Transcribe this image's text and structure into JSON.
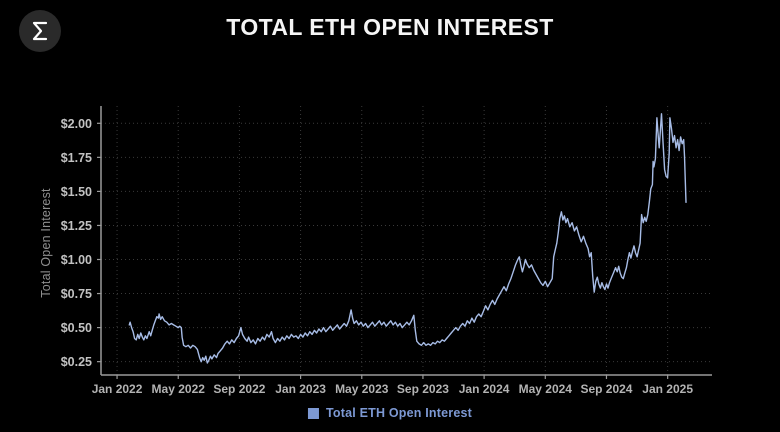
{
  "header": {
    "title": "TOTAL ETH OPEN INTEREST",
    "logo_glyph": "sigma"
  },
  "colors": {
    "background": "#000000",
    "title": "#f5f5f5",
    "axis": "#9a9a9a",
    "tick_label": "#b3b3b3",
    "y_tick_label": "#c2c2c2",
    "y_axis_title": "#8f8f8f",
    "grid": "#3a3a3a",
    "line": "#a7bce6",
    "legend": "#7d99d4",
    "logo_bg": "#2a2a2a",
    "logo_glyph": "#ffffff"
  },
  "chart_data": {
    "type": "line",
    "title": "TOTAL ETH OPEN INTEREST",
    "ylabel": "Total Open Interest",
    "xlabel": "",
    "series_name": "Total ETH Open Interest",
    "line_color": "#a7bce6",
    "grid": true,
    "legend_position": "bottom",
    "x_unit": "months since Jan 2022",
    "y_unit": "USD",
    "x_domain": [
      -1.05,
      38.9
    ],
    "y_domain": [
      0.152,
      2.127
    ],
    "x_ticks": [
      {
        "m": 0,
        "label": "Jan 2022"
      },
      {
        "m": 4,
        "label": "May 2022"
      },
      {
        "m": 8,
        "label": "Sep 2022"
      },
      {
        "m": 12,
        "label": "Jan 2023"
      },
      {
        "m": 16,
        "label": "May 2023"
      },
      {
        "m": 20,
        "label": "Sep 2023"
      },
      {
        "m": 24,
        "label": "Jan 2024"
      },
      {
        "m": 28,
        "label": "May 2024"
      },
      {
        "m": 32,
        "label": "Sep 2024"
      },
      {
        "m": 36,
        "label": "Jan 2025"
      }
    ],
    "y_ticks": [
      {
        "v": 0.25,
        "label": "$0.25"
      },
      {
        "v": 0.5,
        "label": "$0.50"
      },
      {
        "v": 0.75,
        "label": "$0.75"
      },
      {
        "v": 1.0,
        "label": "$1.00"
      },
      {
        "v": 1.25,
        "label": "$1.25"
      },
      {
        "v": 1.5,
        "label": "$1.50"
      },
      {
        "v": 1.75,
        "label": "$1.75"
      },
      {
        "v": 2.0,
        "label": "$2.00"
      }
    ],
    "points": [
      [
        0.8,
        0.52
      ],
      [
        0.85,
        0.54
      ],
      [
        0.95,
        0.5
      ],
      [
        1.05,
        0.47
      ],
      [
        1.15,
        0.42
      ],
      [
        1.25,
        0.41
      ],
      [
        1.35,
        0.45
      ],
      [
        1.45,
        0.42
      ],
      [
        1.55,
        0.46
      ],
      [
        1.65,
        0.43
      ],
      [
        1.75,
        0.41
      ],
      [
        1.85,
        0.44
      ],
      [
        1.95,
        0.42
      ],
      [
        2.1,
        0.47
      ],
      [
        2.2,
        0.44
      ],
      [
        2.3,
        0.48
      ],
      [
        2.4,
        0.52
      ],
      [
        2.5,
        0.55
      ],
      [
        2.6,
        0.58
      ],
      [
        2.7,
        0.57
      ],
      [
        2.75,
        0.6
      ],
      [
        2.85,
        0.56
      ],
      [
        2.95,
        0.58
      ],
      [
        3.1,
        0.55
      ],
      [
        3.25,
        0.54
      ],
      [
        3.4,
        0.52
      ],
      [
        3.55,
        0.53
      ],
      [
        3.7,
        0.52
      ],
      [
        3.85,
        0.51
      ],
      [
        4.0,
        0.5
      ],
      [
        4.1,
        0.51
      ],
      [
        4.2,
        0.5
      ],
      [
        4.25,
        0.43
      ],
      [
        4.35,
        0.37
      ],
      [
        4.5,
        0.36
      ],
      [
        4.65,
        0.37
      ],
      [
        4.8,
        0.35
      ],
      [
        4.95,
        0.37
      ],
      [
        5.1,
        0.36
      ],
      [
        5.25,
        0.34
      ],
      [
        5.4,
        0.28
      ],
      [
        5.5,
        0.25
      ],
      [
        5.6,
        0.28
      ],
      [
        5.7,
        0.26
      ],
      [
        5.8,
        0.29
      ],
      [
        5.9,
        0.24
      ],
      [
        6.0,
        0.26
      ],
      [
        6.1,
        0.29
      ],
      [
        6.2,
        0.27
      ],
      [
        6.35,
        0.3
      ],
      [
        6.5,
        0.28
      ],
      [
        6.6,
        0.31
      ],
      [
        6.75,
        0.33
      ],
      [
        6.9,
        0.35
      ],
      [
        7.05,
        0.38
      ],
      [
        7.2,
        0.4
      ],
      [
        7.35,
        0.38
      ],
      [
        7.5,
        0.41
      ],
      [
        7.65,
        0.39
      ],
      [
        7.8,
        0.42
      ],
      [
        7.95,
        0.44
      ],
      [
        8.1,
        0.5
      ],
      [
        8.2,
        0.45
      ],
      [
        8.35,
        0.42
      ],
      [
        8.5,
        0.4
      ],
      [
        8.6,
        0.43
      ],
      [
        8.75,
        0.39
      ],
      [
        8.9,
        0.41
      ],
      [
        9.05,
        0.38
      ],
      [
        9.2,
        0.42
      ],
      [
        9.35,
        0.4
      ],
      [
        9.5,
        0.43
      ],
      [
        9.65,
        0.41
      ],
      [
        9.8,
        0.45
      ],
      [
        9.95,
        0.43
      ],
      [
        10.1,
        0.47
      ],
      [
        10.2,
        0.42
      ],
      [
        10.35,
        0.39
      ],
      [
        10.5,
        0.42
      ],
      [
        10.65,
        0.4
      ],
      [
        10.8,
        0.43
      ],
      [
        10.95,
        0.41
      ],
      [
        11.1,
        0.44
      ],
      [
        11.25,
        0.42
      ],
      [
        11.4,
        0.45
      ],
      [
        11.55,
        0.43
      ],
      [
        11.7,
        0.44
      ],
      [
        11.85,
        0.42
      ],
      [
        12.0,
        0.45
      ],
      [
        12.15,
        0.43
      ],
      [
        12.3,
        0.46
      ],
      [
        12.45,
        0.44
      ],
      [
        12.6,
        0.47
      ],
      [
        12.75,
        0.45
      ],
      [
        12.9,
        0.48
      ],
      [
        13.05,
        0.46
      ],
      [
        13.2,
        0.49
      ],
      [
        13.35,
        0.47
      ],
      [
        13.5,
        0.5
      ],
      [
        13.65,
        0.47
      ],
      [
        13.8,
        0.49
      ],
      [
        13.95,
        0.51
      ],
      [
        14.1,
        0.48
      ],
      [
        14.25,
        0.5
      ],
      [
        14.4,
        0.52
      ],
      [
        14.55,
        0.49
      ],
      [
        14.7,
        0.51
      ],
      [
        14.85,
        0.53
      ],
      [
        15.0,
        0.51
      ],
      [
        15.15,
        0.55
      ],
      [
        15.3,
        0.63
      ],
      [
        15.4,
        0.57
      ],
      [
        15.5,
        0.53
      ],
      [
        15.65,
        0.55
      ],
      [
        15.8,
        0.52
      ],
      [
        15.95,
        0.54
      ],
      [
        16.1,
        0.51
      ],
      [
        16.25,
        0.53
      ],
      [
        16.4,
        0.5
      ],
      [
        16.55,
        0.52
      ],
      [
        16.7,
        0.54
      ],
      [
        16.85,
        0.51
      ],
      [
        17.0,
        0.53
      ],
      [
        17.15,
        0.55
      ],
      [
        17.3,
        0.52
      ],
      [
        17.45,
        0.54
      ],
      [
        17.6,
        0.51
      ],
      [
        17.75,
        0.53
      ],
      [
        17.9,
        0.55
      ],
      [
        18.05,
        0.52
      ],
      [
        18.2,
        0.54
      ],
      [
        18.35,
        0.51
      ],
      [
        18.5,
        0.53
      ],
      [
        18.65,
        0.5
      ],
      [
        18.8,
        0.52
      ],
      [
        18.95,
        0.54
      ],
      [
        19.1,
        0.52
      ],
      [
        19.25,
        0.55
      ],
      [
        19.4,
        0.59
      ],
      [
        19.5,
        0.48
      ],
      [
        19.6,
        0.4
      ],
      [
        19.75,
        0.38
      ],
      [
        19.9,
        0.37
      ],
      [
        20.05,
        0.39
      ],
      [
        20.2,
        0.37
      ],
      [
        20.35,
        0.38
      ],
      [
        20.5,
        0.37
      ],
      [
        20.65,
        0.39
      ],
      [
        20.8,
        0.38
      ],
      [
        20.95,
        0.4
      ],
      [
        21.1,
        0.39
      ],
      [
        21.25,
        0.41
      ],
      [
        21.4,
        0.4
      ],
      [
        21.55,
        0.42
      ],
      [
        21.7,
        0.44
      ],
      [
        21.85,
        0.46
      ],
      [
        22.0,
        0.48
      ],
      [
        22.15,
        0.5
      ],
      [
        22.3,
        0.48
      ],
      [
        22.45,
        0.51
      ],
      [
        22.6,
        0.53
      ],
      [
        22.75,
        0.51
      ],
      [
        22.9,
        0.55
      ],
      [
        23.05,
        0.53
      ],
      [
        23.2,
        0.57
      ],
      [
        23.35,
        0.54
      ],
      [
        23.5,
        0.58
      ],
      [
        23.65,
        0.6
      ],
      [
        23.8,
        0.58
      ],
      [
        23.95,
        0.62
      ],
      [
        24.1,
        0.66
      ],
      [
        24.25,
        0.63
      ],
      [
        24.4,
        0.67
      ],
      [
        24.55,
        0.7
      ],
      [
        24.7,
        0.67
      ],
      [
        24.85,
        0.71
      ],
      [
        25.0,
        0.74
      ],
      [
        25.15,
        0.77
      ],
      [
        25.3,
        0.8
      ],
      [
        25.45,
        0.77
      ],
      [
        25.6,
        0.82
      ],
      [
        25.75,
        0.86
      ],
      [
        25.9,
        0.91
      ],
      [
        26.05,
        0.96
      ],
      [
        26.2,
        1.0
      ],
      [
        26.3,
        1.02
      ],
      [
        26.4,
        0.96
      ],
      [
        26.5,
        0.91
      ],
      [
        26.6,
        0.95
      ],
      [
        26.7,
        1.0
      ],
      [
        26.8,
        0.97
      ],
      [
        26.95,
        0.94
      ],
      [
        27.1,
        0.96
      ],
      [
        27.25,
        0.92
      ],
      [
        27.4,
        0.89
      ],
      [
        27.55,
        0.86
      ],
      [
        27.7,
        0.83
      ],
      [
        27.85,
        0.81
      ],
      [
        28.0,
        0.84
      ],
      [
        28.15,
        0.8
      ],
      [
        28.3,
        0.83
      ],
      [
        28.45,
        0.86
      ],
      [
        28.55,
        1.02
      ],
      [
        28.65,
        1.07
      ],
      [
        28.75,
        1.12
      ],
      [
        28.85,
        1.2
      ],
      [
        28.95,
        1.3
      ],
      [
        29.05,
        1.35
      ],
      [
        29.15,
        1.29
      ],
      [
        29.25,
        1.32
      ],
      [
        29.35,
        1.27
      ],
      [
        29.45,
        1.3
      ],
      [
        29.6,
        1.24
      ],
      [
        29.75,
        1.27
      ],
      [
        29.9,
        1.21
      ],
      [
        30.05,
        1.24
      ],
      [
        30.2,
        1.18
      ],
      [
        30.35,
        1.13
      ],
      [
        30.5,
        1.17
      ],
      [
        30.65,
        1.12
      ],
      [
        30.8,
        1.08
      ],
      [
        30.9,
        1.02
      ],
      [
        31.0,
        1.05
      ],
      [
        31.1,
        0.88
      ],
      [
        31.2,
        0.76
      ],
      [
        31.3,
        0.84
      ],
      [
        31.4,
        0.87
      ],
      [
        31.5,
        0.82
      ],
      [
        31.6,
        0.79
      ],
      [
        31.7,
        0.83
      ],
      [
        31.8,
        0.8
      ],
      [
        31.9,
        0.78
      ],
      [
        32.0,
        0.82
      ],
      [
        32.1,
        0.79
      ],
      [
        32.2,
        0.83
      ],
      [
        32.3,
        0.86
      ],
      [
        32.45,
        0.9
      ],
      [
        32.6,
        0.94
      ],
      [
        32.7,
        0.91
      ],
      [
        32.8,
        0.95
      ],
      [
        32.9,
        0.9
      ],
      [
        33.0,
        0.87
      ],
      [
        33.1,
        0.86
      ],
      [
        33.2,
        0.9
      ],
      [
        33.3,
        0.94
      ],
      [
        33.4,
        1.0
      ],
      [
        33.5,
        1.05
      ],
      [
        33.6,
        1.01
      ],
      [
        33.7,
        1.06
      ],
      [
        33.8,
        1.1
      ],
      [
        33.9,
        1.05
      ],
      [
        34.0,
        1.02
      ],
      [
        34.1,
        1.07
      ],
      [
        34.2,
        1.12
      ],
      [
        34.3,
        1.33
      ],
      [
        34.4,
        1.27
      ],
      [
        34.5,
        1.31
      ],
      [
        34.6,
        1.28
      ],
      [
        34.7,
        1.33
      ],
      [
        34.8,
        1.42
      ],
      [
        34.9,
        1.52
      ],
      [
        35.0,
        1.55
      ],
      [
        35.05,
        1.72
      ],
      [
        35.1,
        1.68
      ],
      [
        35.2,
        1.74
      ],
      [
        35.3,
        2.04
      ],
      [
        35.4,
        1.88
      ],
      [
        35.45,
        1.82
      ],
      [
        35.6,
        2.07
      ],
      [
        35.7,
        1.85
      ],
      [
        35.8,
        1.66
      ],
      [
        35.9,
        1.61
      ],
      [
        36.0,
        1.6
      ],
      [
        36.1,
        1.78
      ],
      [
        36.15,
        2.04
      ],
      [
        36.25,
        1.96
      ],
      [
        36.35,
        1.86
      ],
      [
        36.45,
        1.91
      ],
      [
        36.55,
        1.82
      ],
      [
        36.65,
        1.88
      ],
      [
        36.75,
        1.8
      ],
      [
        36.85,
        1.9
      ],
      [
        36.95,
        1.85
      ],
      [
        37.05,
        1.88
      ],
      [
        37.1,
        1.76
      ],
      [
        37.15,
        1.6
      ],
      [
        37.2,
        1.42
      ]
    ]
  }
}
